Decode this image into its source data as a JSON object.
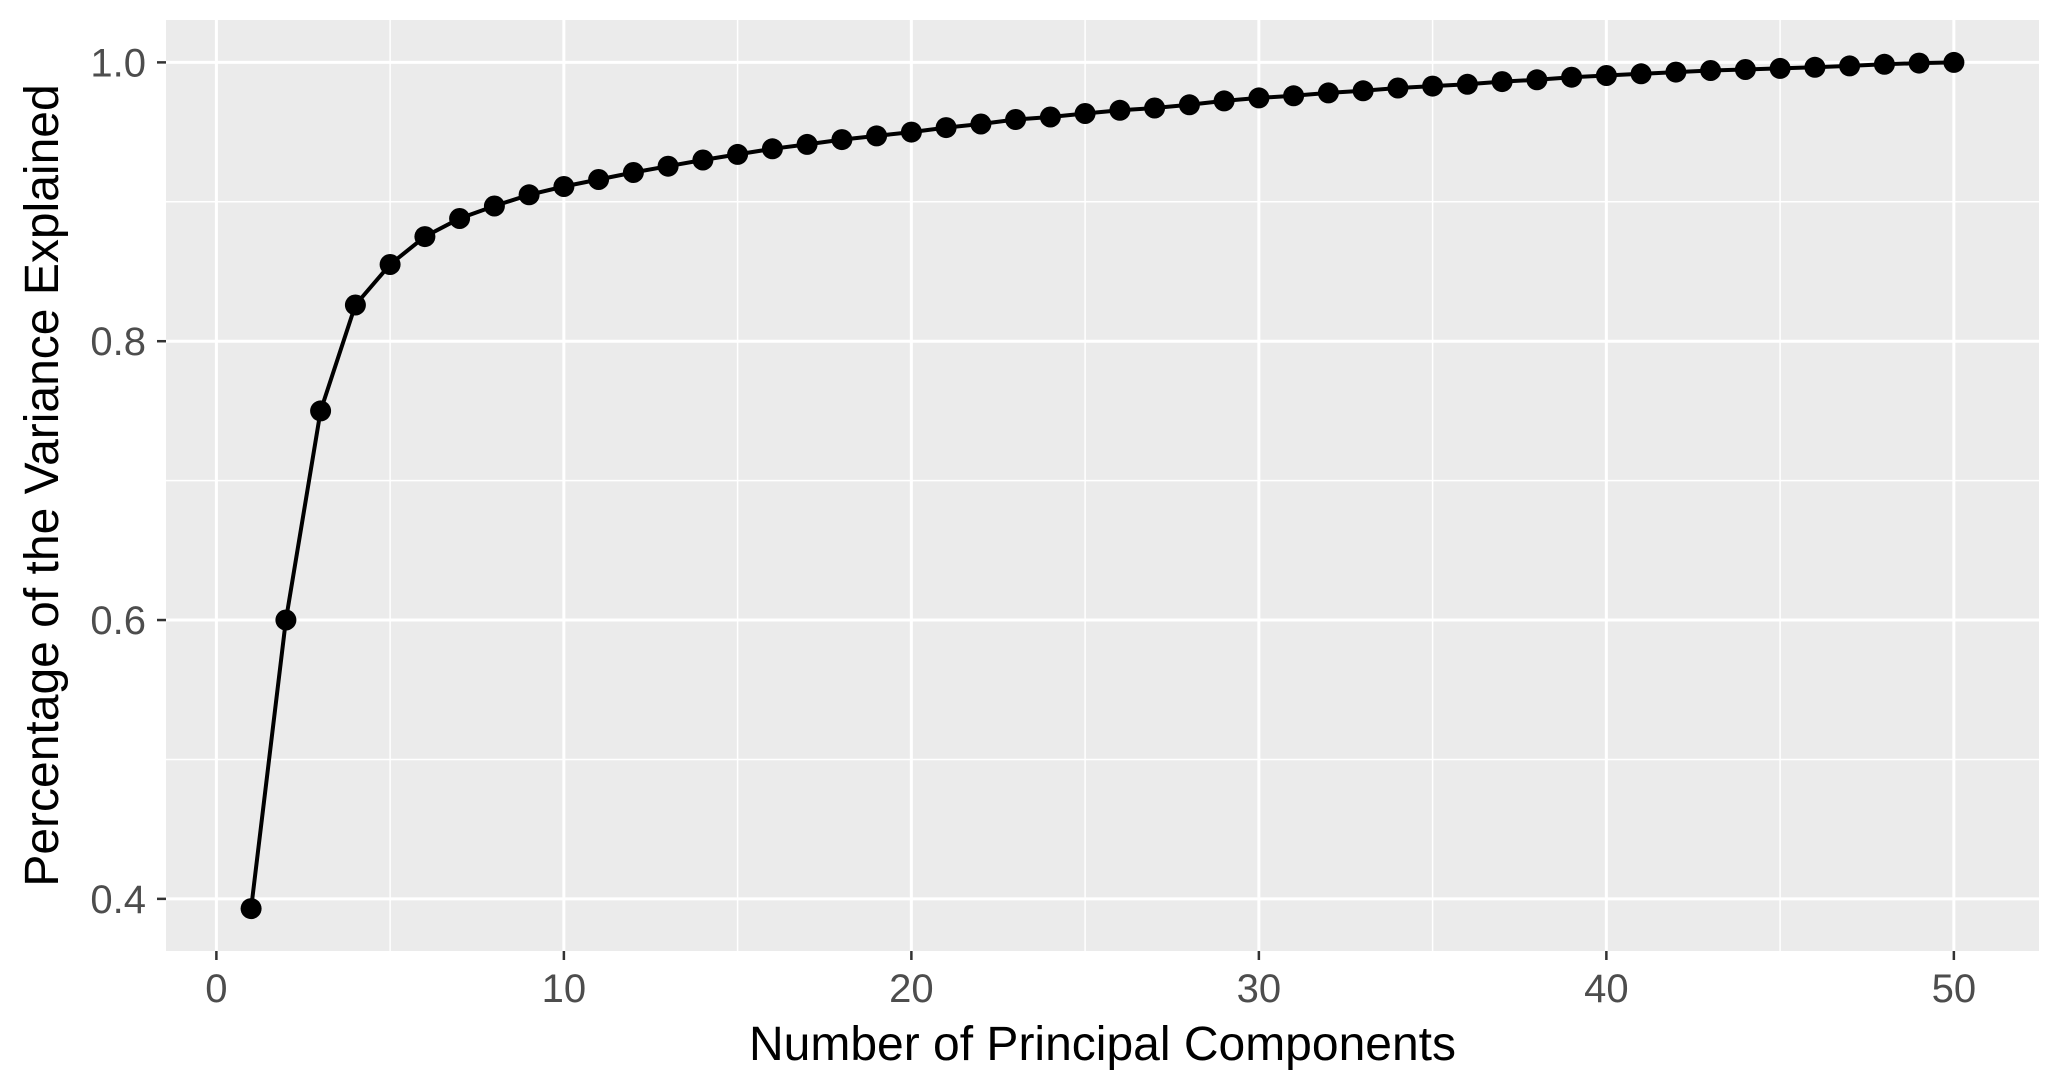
{
  "chart_data": {
    "type": "line",
    "title": "",
    "xlabel": "Number of Principal Components",
    "ylabel": "Percentage of the Variance Explained",
    "x": [
      1,
      2,
      3,
      4,
      5,
      6,
      7,
      8,
      9,
      10,
      11,
      12,
      13,
      14,
      15,
      16,
      17,
      18,
      19,
      20,
      21,
      22,
      23,
      24,
      25,
      26,
      27,
      28,
      29,
      30,
      31,
      32,
      33,
      34,
      35,
      36,
      37,
      38,
      39,
      40,
      41,
      42,
      43,
      44,
      45,
      46,
      47,
      48,
      49,
      50
    ],
    "values": [
      0.393,
      0.6,
      0.75,
      0.826,
      0.855,
      0.875,
      0.888,
      0.897,
      0.905,
      0.911,
      0.916,
      0.921,
      0.9255,
      0.93,
      0.934,
      0.938,
      0.9412,
      0.9446,
      0.9473,
      0.95,
      0.9532,
      0.9558,
      0.959,
      0.9608,
      0.9633,
      0.9656,
      0.9673,
      0.9696,
      0.9724,
      0.9745,
      0.976,
      0.9781,
      0.9796,
      0.9816,
      0.983,
      0.9843,
      0.9862,
      0.9875,
      0.9894,
      0.9906,
      0.9918,
      0.993,
      0.9942,
      0.9949,
      0.9957,
      0.9965,
      0.9975,
      0.9986,
      0.9995,
      1.0
    ],
    "xlim": [
      -1.45,
      52.45
    ],
    "ylim": [
      0.3626,
      1.0304
    ],
    "x_major_ticks": [
      0,
      10,
      20,
      30,
      40,
      50
    ],
    "x_major_tick_labels": [
      "0",
      "10",
      "20",
      "30",
      "40",
      "50"
    ],
    "x_minor_ticks": [
      5,
      15,
      25,
      35,
      45
    ],
    "y_major_ticks": [
      0.4,
      0.6,
      0.8,
      1.0
    ],
    "y_major_tick_labels": [
      "0.4",
      "0.6",
      "0.8",
      "1.0"
    ],
    "y_minor_ticks": [
      0.5,
      0.7,
      0.9
    ],
    "grid": true,
    "legend_position": "none",
    "marker": "filled-circle"
  },
  "style": {
    "panel_background": "#EBEBEB",
    "grid_color": "#FFFFFF",
    "series_color": "#000000",
    "tick_mark_color": "#333333",
    "tick_label_color": "#4D4D4D",
    "axis_title_color": "#000000",
    "figure_background": "#FFFFFF"
  }
}
